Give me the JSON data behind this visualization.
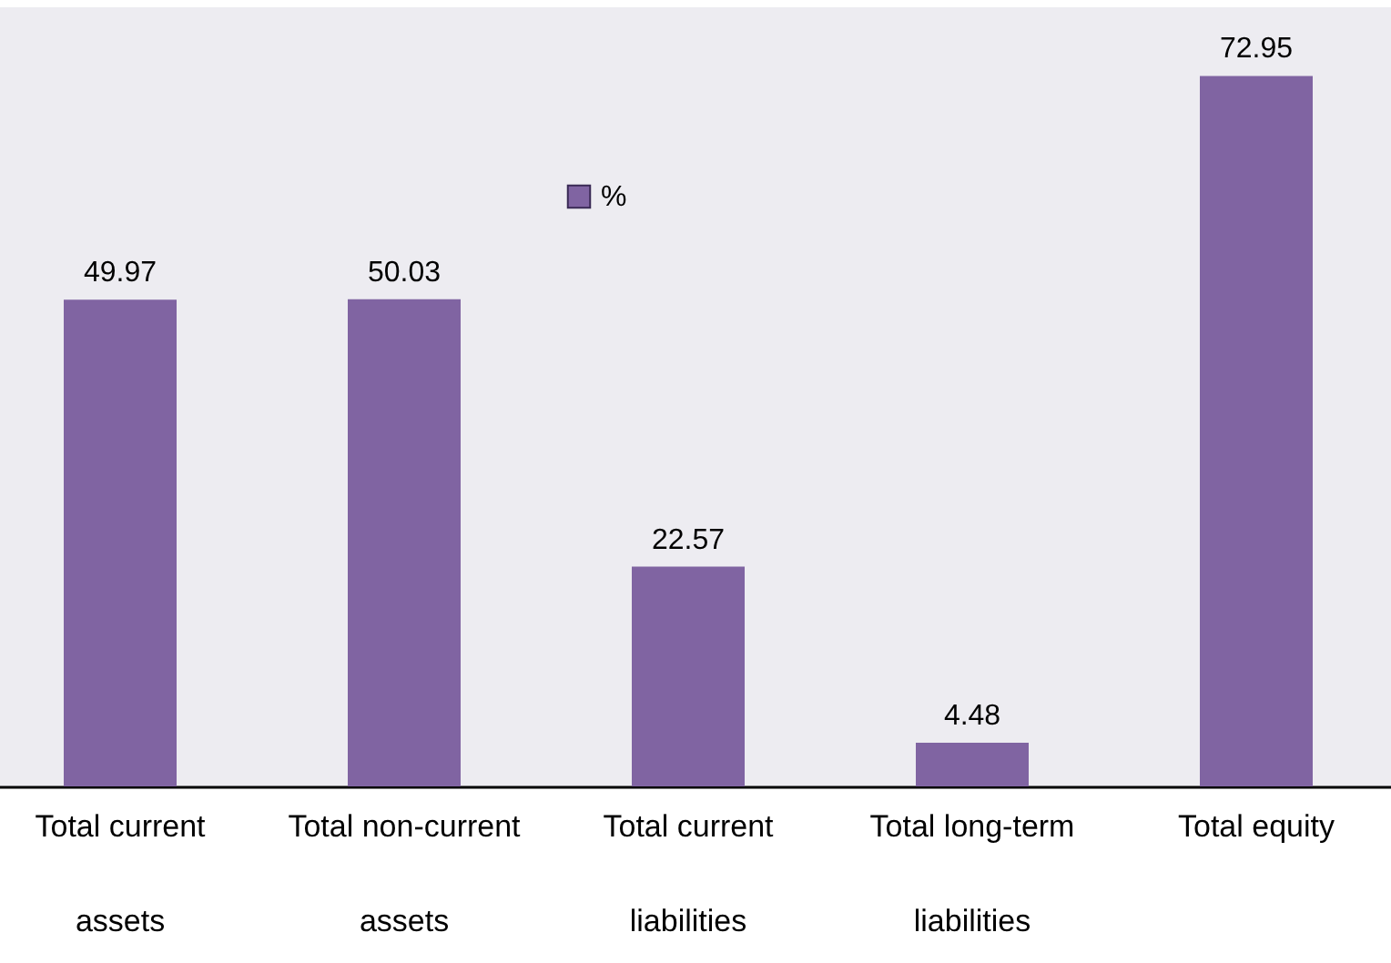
{
  "chart_data": {
    "type": "bar",
    "categories": [
      "Total current assets",
      "Total non-current assets",
      "Total current liabilities",
      "Total long-term liabilities",
      "Total equity"
    ],
    "series": [
      {
        "name": "%",
        "color": "#8064a2",
        "values": [
          49.97,
          50.03,
          22.57,
          4.48,
          72.95
        ]
      }
    ],
    "ylim": [
      0,
      80
    ],
    "data_labels": true,
    "legend": "top",
    "grid": false
  }
}
